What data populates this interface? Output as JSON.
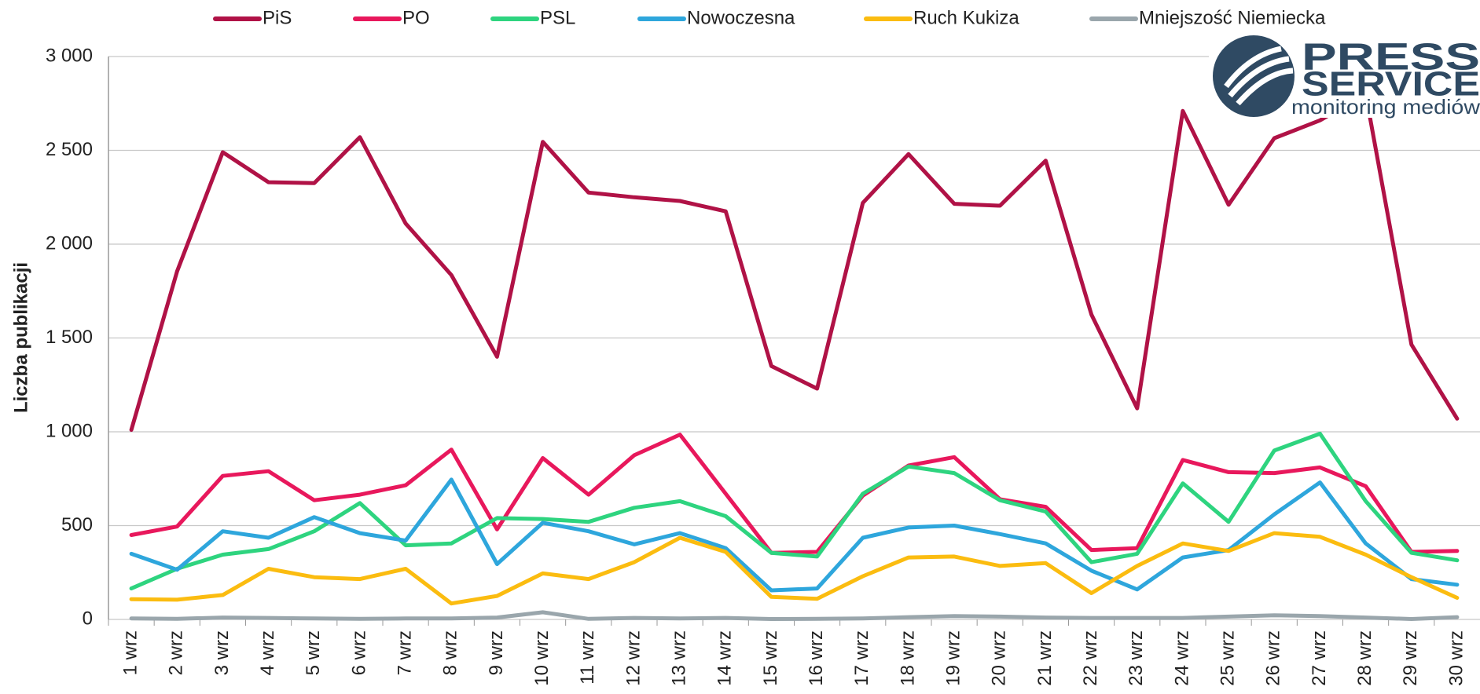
{
  "chart_data": {
    "type": "line",
    "y_label": "Liczba publikacji",
    "logo": {
      "line1": "PRESS",
      "line2": "SERVICE",
      "line3": "monitoring mediów"
    },
    "categories": [
      "1 wrz",
      "2 wrz",
      "3 wrz",
      "4 wrz",
      "5 wrz",
      "6 wrz",
      "7 wrz",
      "8 wrz",
      "9 wrz",
      "10 wrz",
      "11 wrz",
      "12 wrz",
      "13 wrz",
      "14 wrz",
      "15 wrz",
      "16 wrz",
      "17 wrz",
      "18 wrz",
      "19 wrz",
      "20 wrz",
      "21 wrz",
      "22 wrz",
      "23 wrz",
      "24 wrz",
      "25 wrz",
      "26 wrz",
      "27 wrz",
      "28 wrz",
      "29 wrz",
      "30 wrz"
    ],
    "series": [
      {
        "name": "PiS",
        "color": "#b01246",
        "values": [
          1010,
          1855,
          2490,
          2330,
          2325,
          2570,
          2110,
          1835,
          1400,
          2545,
          2275,
          2250,
          2230,
          2175,
          1350,
          1230,
          2220,
          2480,
          2215,
          2205,
          2445,
          1625,
          1125,
          2710,
          2210,
          2565,
          2660,
          2800,
          1465,
          1070
        ]
      },
      {
        "name": "PO",
        "color": "#e8185c",
        "values": [
          450,
          495,
          765,
          790,
          635,
          665,
          715,
          905,
          480,
          860,
          665,
          875,
          985,
          670,
          355,
          360,
          660,
          820,
          865,
          640,
          600,
          370,
          380,
          850,
          785,
          780,
          810,
          710,
          360,
          365
        ]
      },
      {
        "name": "PSL",
        "color": "#2ed47f",
        "values": [
          165,
          270,
          345,
          375,
          470,
          620,
          395,
          405,
          540,
          535,
          520,
          595,
          630,
          550,
          355,
          335,
          670,
          815,
          780,
          635,
          575,
          305,
          350,
          725,
          520,
          900,
          990,
          630,
          355,
          315
        ]
      },
      {
        "name": "Nowoczesna",
        "color": "#2ea6dc",
        "values": [
          350,
          265,
          470,
          435,
          545,
          460,
          420,
          745,
          295,
          515,
          470,
          400,
          460,
          380,
          155,
          165,
          435,
          490,
          500,
          455,
          405,
          260,
          160,
          330,
          370,
          560,
          730,
          405,
          215,
          185
        ]
      },
      {
        "name": "Ruch Kukiza",
        "color": "#fbbc10",
        "values": [
          108,
          105,
          130,
          270,
          225,
          215,
          270,
          85,
          125,
          245,
          215,
          305,
          435,
          360,
          120,
          110,
          230,
          330,
          335,
          285,
          300,
          140,
          285,
          405,
          365,
          460,
          440,
          345,
          225,
          115
        ]
      },
      {
        "name": "Mniejszość Niemiecka",
        "color": "#9aa6ac",
        "values": [
          5,
          3,
          10,
          8,
          5,
          3,
          5,
          5,
          10,
          38,
          3,
          8,
          5,
          8,
          2,
          3,
          5,
          12,
          18,
          15,
          10,
          8,
          8,
          8,
          15,
          22,
          18,
          10,
          2,
          12
        ]
      }
    ],
    "ylim": [
      0,
      3000
    ],
    "yticks": [
      0,
      500,
      {
        "value": 1000,
        "label": "1 000"
      },
      {
        "value": 1500,
        "label": "1 500"
      },
      {
        "value": 2000,
        "label": "2 000"
      },
      {
        "value": 2500,
        "label": "2 500"
      },
      {
        "value": 3000,
        "label": "3 000"
      }
    ],
    "grid": true,
    "legend": "top"
  }
}
